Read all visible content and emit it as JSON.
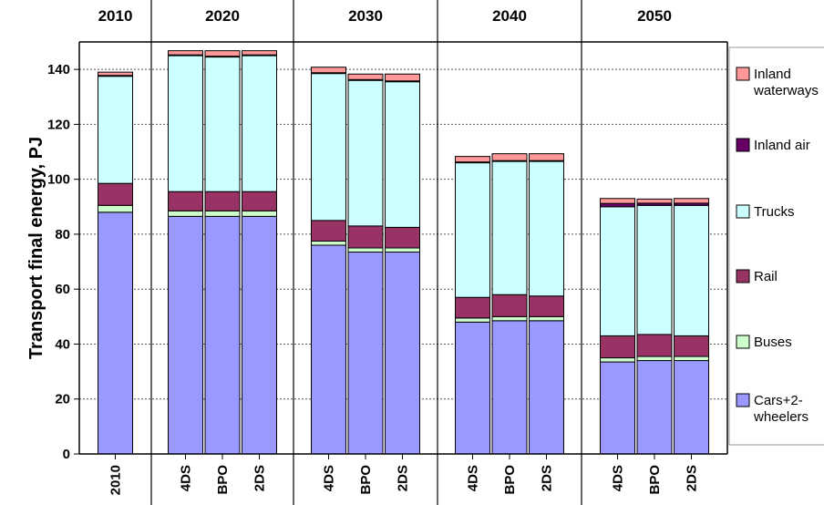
{
  "chart_data": {
    "type": "bar",
    "stacked": true,
    "ylabel": "Transport final energy, PJ",
    "ylim": [
      0,
      150
    ],
    "yticks": [
      0,
      20,
      40,
      60,
      80,
      100,
      120,
      140
    ],
    "grid": "horizontal dotted",
    "legend_position": "right",
    "groups": [
      {
        "label": "2010",
        "categories": [
          "2010"
        ]
      },
      {
        "label": "2020",
        "categories": [
          "4DS",
          "BPO",
          "2DS"
        ]
      },
      {
        "label": "2030",
        "categories": [
          "4DS",
          "BPO",
          "2DS"
        ]
      },
      {
        "label": "2040",
        "categories": [
          "4DS",
          "BPO",
          "2DS"
        ]
      },
      {
        "label": "2050",
        "categories": [
          "4DS",
          "BPO",
          "2DS"
        ]
      }
    ],
    "series": [
      {
        "name": "Cars+2-wheelers",
        "color": "#9999ff",
        "values": [
          88,
          86.5,
          86.5,
          86.5,
          76,
          73.5,
          73.5,
          48,
          48.5,
          48.5,
          33.5,
          34,
          34
        ]
      },
      {
        "name": "Buses",
        "color": "#ccffcc",
        "values": [
          2.5,
          2,
          2,
          2,
          1.5,
          1.5,
          1.5,
          1.5,
          1.5,
          1.5,
          1.5,
          1.5,
          1.5
        ]
      },
      {
        "name": "Rail",
        "color": "#993366",
        "values": [
          8,
          7,
          7,
          7,
          7.5,
          8,
          7.5,
          7.5,
          8,
          7.5,
          8,
          8,
          7.5
        ]
      },
      {
        "name": "Trucks",
        "color": "#ccffff",
        "values": [
          39,
          49.5,
          49,
          49.5,
          53.5,
          53,
          53,
          49,
          48.5,
          49,
          47,
          47,
          47.5
        ]
      },
      {
        "name": "Inland air",
        "color": "#660066",
        "values": [
          0.3,
          0.3,
          0.3,
          0.3,
          0.3,
          0.3,
          0.3,
          0.3,
          0.3,
          0.3,
          1.2,
          0.8,
          0.8
        ]
      },
      {
        "name": "Inland waterways",
        "color": "#ff9999",
        "values": [
          1.2,
          1.5,
          2,
          1.5,
          2,
          2,
          2.5,
          2,
          2.5,
          2.5,
          1.8,
          1.5,
          1.7
        ]
      }
    ],
    "legend": [
      {
        "lines": [
          "Inland",
          "waterways"
        ],
        "color": "#ff9999"
      },
      {
        "lines": [
          "Inland air"
        ],
        "color": "#660066"
      },
      {
        "lines": [
          "Trucks"
        ],
        "color": "#ccffff"
      },
      {
        "lines": [
          "Rail"
        ],
        "color": "#993366"
      },
      {
        "lines": [
          "Buses"
        ],
        "color": "#ccffcc"
      },
      {
        "lines": [
          "Cars+2-",
          "wheelers"
        ],
        "color": "#9999ff"
      }
    ]
  }
}
